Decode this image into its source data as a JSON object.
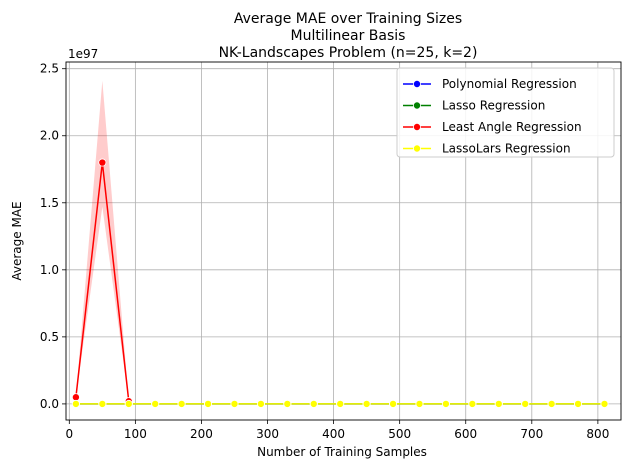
{
  "chart_data": {
    "type": "line",
    "title": [
      "Average MAE over Training Sizes",
      "Multilinear Basis",
      "NK-Landscapes Problem (n=25, k=2)"
    ],
    "xlabel": "Number of Training Samples",
    "ylabel": "Average MAE",
    "y_offset_label": "1e97",
    "xlim": [
      -5,
      835
    ],
    "ylim": [
      -0.12,
      2.55
    ],
    "x_ticks": [
      0,
      100,
      200,
      300,
      400,
      500,
      600,
      700,
      800
    ],
    "x_tick_labels": [
      "0",
      "100",
      "200",
      "300",
      "400",
      "500",
      "600",
      "700",
      "800"
    ],
    "y_ticks": [
      0.0,
      0.5,
      1.0,
      1.5,
      2.0,
      2.5
    ],
    "y_tick_labels": [
      "0.0",
      "0.5",
      "1.0",
      "1.5",
      "2.0",
      "2.5"
    ],
    "grid": true,
    "legend_position": "top-right",
    "x": [
      10,
      50,
      90,
      130,
      170,
      210,
      250,
      290,
      330,
      370,
      410,
      450,
      490,
      530,
      570,
      610,
      650,
      690,
      730,
      770,
      810
    ],
    "series": [
      {
        "name": "Polynomial Regression",
        "color": "#0000ff",
        "values": [
          0,
          0,
          0,
          0,
          0,
          0,
          0,
          0,
          0,
          0,
          0,
          0,
          0,
          0,
          0,
          0,
          0,
          0,
          0,
          0,
          0
        ]
      },
      {
        "name": "Lasso Regression",
        "color": "#008000",
        "values": [
          0,
          0,
          0,
          0,
          0,
          0,
          0,
          0,
          0,
          0,
          0,
          0,
          0,
          0,
          0,
          0,
          0,
          0,
          0,
          0,
          0
        ]
      },
      {
        "name": "Least Angle Regression",
        "color": "#ff0000",
        "values": [
          0.05,
          1.8,
          0.02
        ],
        "x": [
          10,
          50,
          90
        ],
        "band_upper": [
          0.05,
          2.41,
          0.02
        ],
        "band_lower": [
          0.05,
          1.47,
          0.02
        ]
      },
      {
        "name": "LassoLars Regression",
        "color": "#ffff00",
        "values": [
          0,
          0,
          0,
          0,
          0,
          0,
          0,
          0,
          0,
          0,
          0,
          0,
          0,
          0,
          0,
          0,
          0,
          0,
          0,
          0,
          0
        ]
      }
    ]
  }
}
